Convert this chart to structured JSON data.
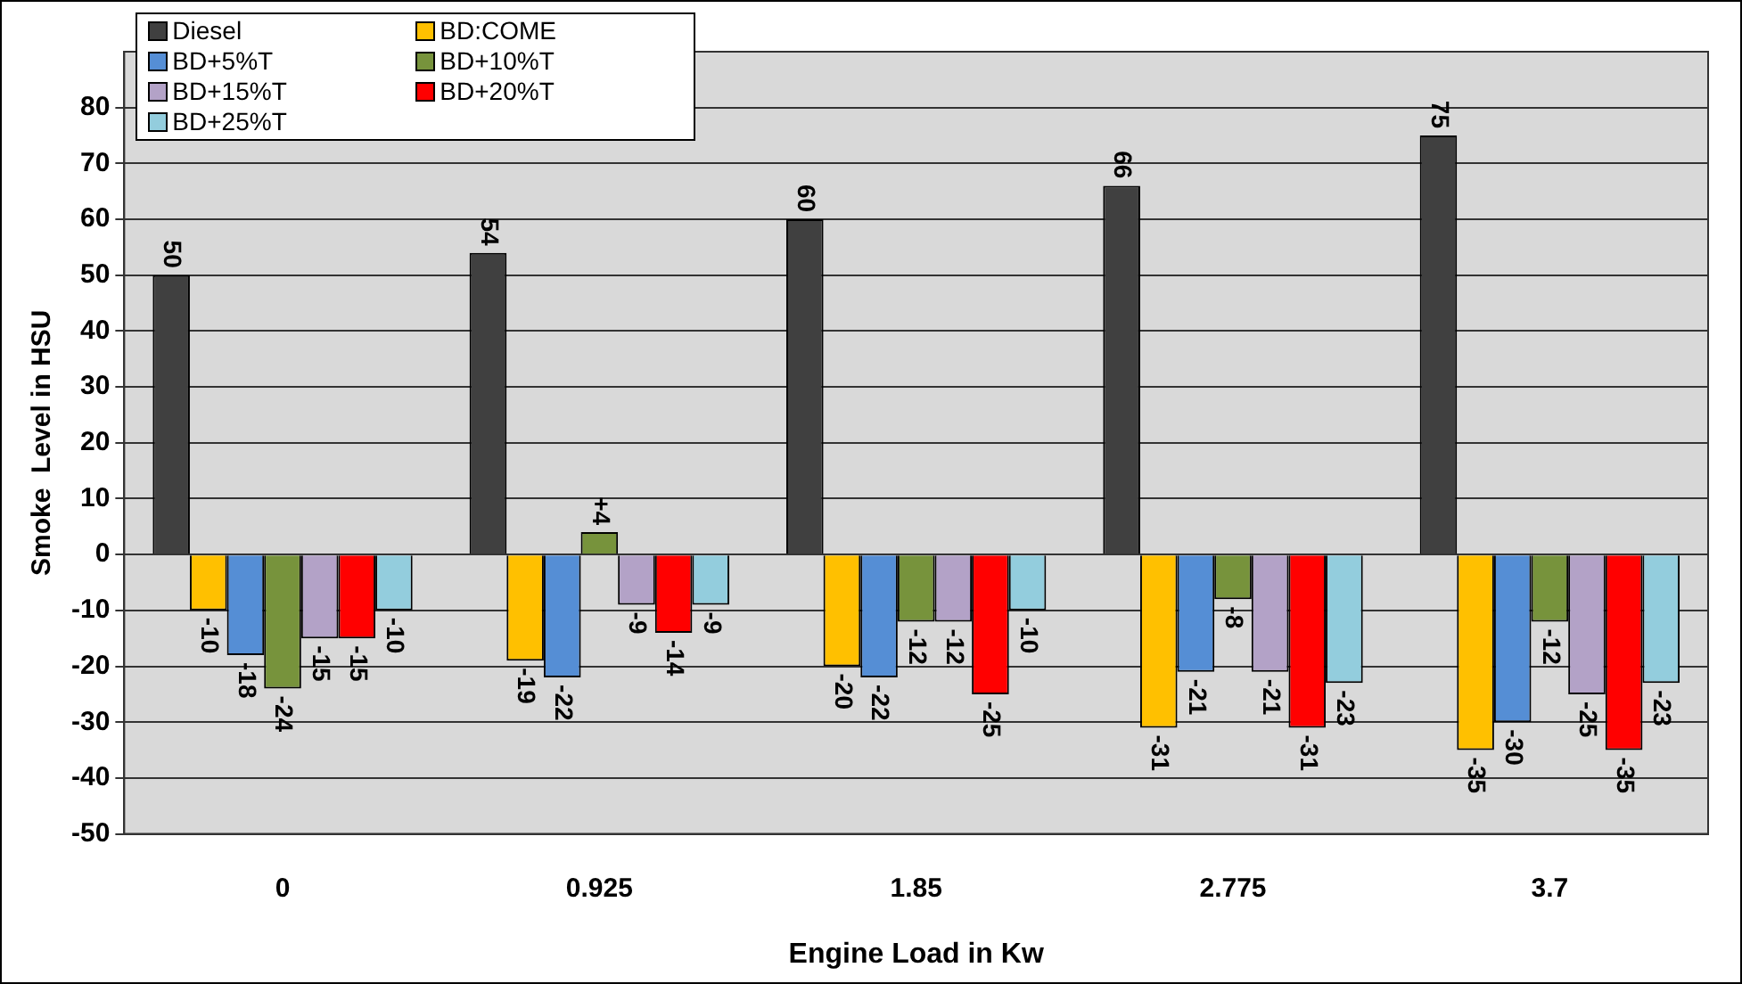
{
  "chart_data": {
    "type": "bar",
    "xlabel": "Engine Load in Kw",
    "ylabel": "Smoke  Level in HSU",
    "categories": [
      "0",
      "0.925",
      "1.85",
      "2.775",
      "3.7"
    ],
    "series": [
      {
        "name": "Diesel",
        "color": "#404040",
        "values": [
          50,
          54,
          60,
          66,
          75
        ],
        "value_labels": [
          "50",
          "54",
          "60",
          "66",
          "75"
        ]
      },
      {
        "name": "BD:COME",
        "color": "#ffc000",
        "values": [
          -10,
          -19,
          -20,
          -31,
          -35
        ],
        "value_labels": [
          "-10",
          "-19",
          "-20",
          "-31",
          "-35"
        ]
      },
      {
        "name": "BD+5%T",
        "color": "#558ed5",
        "values": [
          -18,
          -22,
          -22,
          -21,
          -30
        ],
        "value_labels": [
          "-18",
          "-22",
          "-22",
          "-21",
          "-30"
        ]
      },
      {
        "name": "BD+10%T",
        "color": "#77933c",
        "values": [
          -24,
          4,
          -12,
          -8,
          -12
        ],
        "value_labels": [
          "-24",
          "+4",
          "-12",
          "-8",
          "-12"
        ]
      },
      {
        "name": "BD+15%T",
        "color": "#b3a2c7",
        "values": [
          -15,
          -9,
          -12,
          -21,
          -25
        ],
        "value_labels": [
          "-15",
          "-9",
          "-12",
          "-21",
          "-25"
        ]
      },
      {
        "name": "BD+20%T",
        "color": "#ff0000",
        "values": [
          -15,
          -14,
          -25,
          -31,
          -35
        ],
        "value_labels": [
          "-15",
          "-14",
          "-25",
          "-31",
          "-35"
        ]
      },
      {
        "name": "BD+25%T",
        "color": "#93cddd",
        "values": [
          -10,
          -9,
          -10,
          -23,
          -23
        ],
        "value_labels": [
          "-10",
          "-9",
          "-10",
          "-23",
          "-23"
        ]
      }
    ],
    "ylim": [
      -50,
      90
    ],
    "yticks": [
      -50,
      -40,
      -30,
      -20,
      -10,
      0,
      10,
      20,
      30,
      40,
      50,
      60,
      70,
      80
    ],
    "grid": "y",
    "legend": "top left"
  }
}
